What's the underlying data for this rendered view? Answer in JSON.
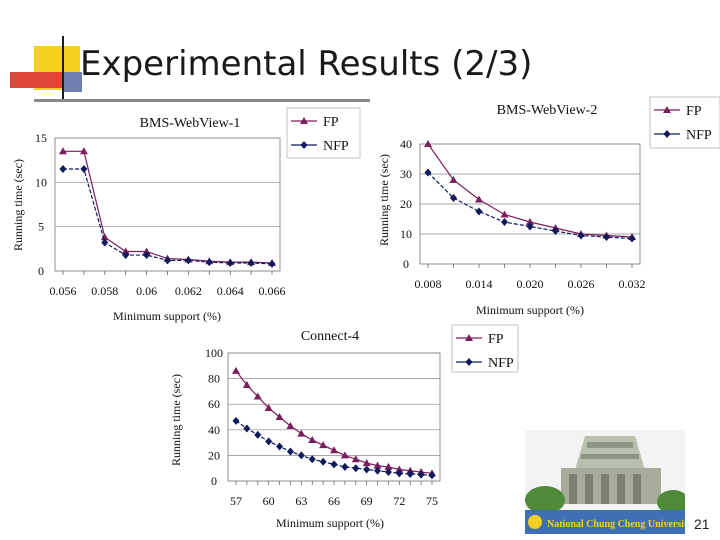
{
  "slide": {
    "title": "Experimental Results (2/3)",
    "page_number": "21",
    "logo_text": "National Chung Cheng University"
  },
  "colors": {
    "fp": "#7a1f5c",
    "nfp": "#0e1a5c",
    "accent_yellow": "#f5d020",
    "accent_red": "#e0453a",
    "accent_blue": "#6f7fb0"
  },
  "chart_data": [
    {
      "type": "line",
      "title": "BMS-WebView-1",
      "xlabel": "Minimum support (%)",
      "ylabel": "Running time (sec)",
      "categories": [
        "0.056",
        "",
        "0.058",
        "",
        "0.06",
        "",
        "0.062",
        "",
        "0.064",
        "",
        "0.066"
      ],
      "ylim": [
        0,
        15
      ],
      "yticks": [
        0,
        5,
        10,
        15
      ],
      "series": [
        {
          "name": "FP",
          "marker": "triangle",
          "values": [
            13.5,
            13.5,
            3.8,
            2.2,
            2.2,
            1.4,
            1.3,
            1.1,
            1.0,
            1.0,
            0.9
          ]
        },
        {
          "name": "NFP",
          "marker": "diamond",
          "values": [
            11.5,
            11.5,
            3.2,
            1.8,
            1.8,
            1.2,
            1.2,
            1.0,
            0.9,
            0.9,
            0.8
          ]
        }
      ]
    },
    {
      "type": "line",
      "title": "BMS-WebView-2",
      "xlabel": "Minimum support (%)",
      "ylabel": "Running time (sec)",
      "categories": [
        "0.008",
        "",
        "0.014",
        "",
        "0.020",
        "",
        "0.026",
        "",
        "0.032"
      ],
      "ylim": [
        0,
        40
      ],
      "yticks": [
        0,
        10,
        20,
        30,
        40
      ],
      "series": [
        {
          "name": "FP",
          "marker": "triangle",
          "values": [
            40,
            28,
            21.5,
            16.5,
            14,
            12,
            10,
            9.5,
            9
          ]
        },
        {
          "name": "NFP",
          "marker": "diamond",
          "values": [
            30.5,
            22,
            17.5,
            14,
            12.5,
            11,
            9.5,
            9,
            8.5
          ]
        }
      ]
    },
    {
      "type": "line",
      "title": "Connect-4",
      "xlabel": "Minimum support (%)",
      "ylabel": "Running time (sec)",
      "categories": [
        "57",
        "",
        "",
        "60",
        "",
        "",
        "63",
        "",
        "",
        "66",
        "",
        "",
        "69",
        "",
        "",
        "72",
        "",
        "",
        "75"
      ],
      "ylim": [
        0,
        100
      ],
      "yticks": [
        0,
        20,
        40,
        60,
        80,
        100
      ],
      "series": [
        {
          "name": "FP",
          "marker": "triangle",
          "values": [
            86,
            75,
            66,
            57,
            50,
            43,
            37,
            32,
            28,
            24,
            20,
            17,
            14,
            12,
            11,
            9,
            8,
            7,
            6
          ]
        },
        {
          "name": "NFP",
          "marker": "diamond",
          "values": [
            47,
            41,
            36,
            31,
            27,
            23,
            20,
            17,
            15,
            13,
            11,
            10,
            9,
            8,
            7,
            6,
            5.5,
            5,
            4.5
          ]
        }
      ]
    }
  ]
}
